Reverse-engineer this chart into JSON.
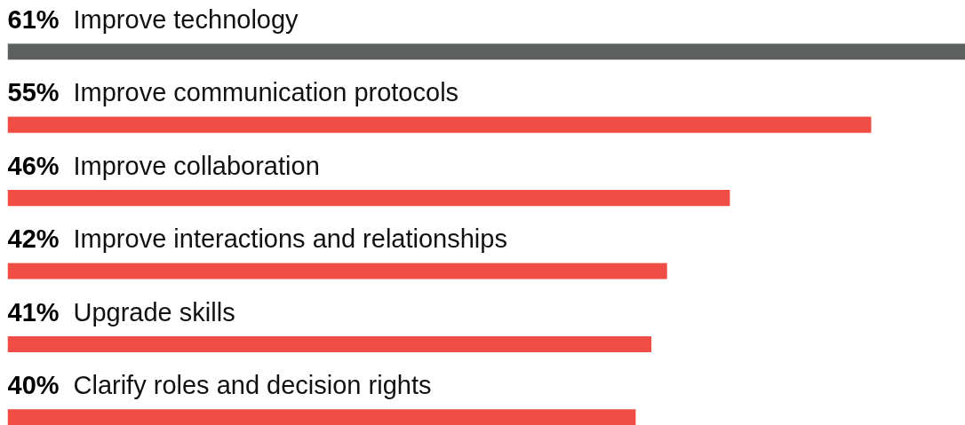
{
  "chart_data": {
    "type": "bar",
    "orientation": "horizontal",
    "categories": [
      "Improve technology",
      "Improve communication protocols",
      "Improve collaboration",
      "Improve interactions and relationships",
      "Upgrade skills",
      "Clarify roles and decision rights"
    ],
    "values": [
      61,
      55,
      46,
      42,
      41,
      40
    ],
    "value_labels": [
      "61%",
      "55%",
      "46%",
      "42%",
      "41%",
      "40%"
    ],
    "colors": [
      "#5e6060",
      "#f04e44",
      "#f04e44",
      "#f04e44",
      "#f04e44",
      "#f04e44"
    ],
    "grid": false
  }
}
